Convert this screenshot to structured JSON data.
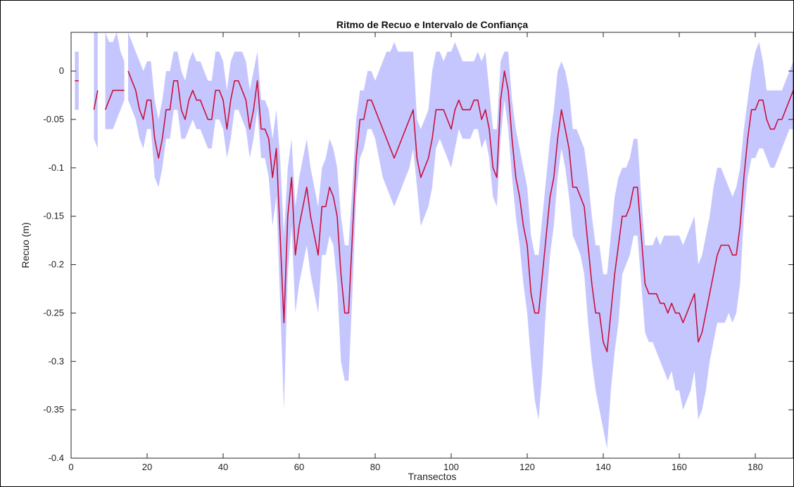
{
  "chart_data": {
    "type": "line",
    "title": "Ritmo de Recuo e Intervalo de Confiança",
    "xlabel": "Transectos",
    "ylabel": "Recuo (m)",
    "xlim": [
      0,
      190
    ],
    "ylim": [
      -0.4,
      0.04
    ],
    "xticks": [
      0,
      20,
      40,
      60,
      80,
      100,
      120,
      140,
      160,
      180
    ],
    "yticks": [
      -0.4,
      -0.35,
      -0.3,
      -0.25,
      -0.2,
      -0.15,
      -0.1,
      -0.05,
      0
    ],
    "xtick_labels": [
      "0",
      "20",
      "40",
      "60",
      "80",
      "100",
      "120",
      "140",
      "160",
      "180"
    ],
    "ytick_labels": [
      "-0.4",
      "-0.35",
      "-0.3",
      "-0.25",
      "-0.2",
      "-0.15",
      "-0.1",
      "-0.05",
      "0"
    ],
    "grid": false,
    "colors": {
      "line": "#c8103c",
      "band": "#c6c6ff"
    },
    "series": [
      {
        "segments": [
          {
            "x": [
              1,
              2
            ],
            "y": [
              -0.01,
              -0.01
            ],
            "upper": [
              0.02,
              0.02
            ],
            "lower": [
              -0.04,
              -0.04
            ]
          },
          {
            "x": [
              6,
              7
            ],
            "y": [
              -0.04,
              -0.02
            ],
            "upper": [
              0.06,
              0.06
            ],
            "lower": [
              -0.07,
              -0.08
            ]
          },
          {
            "x": [
              9,
              10,
              11,
              12,
              13,
              14
            ],
            "y": [
              -0.04,
              -0.03,
              -0.02,
              -0.02,
              -0.02,
              -0.02
            ],
            "upper": [
              0.04,
              0.03,
              0.03,
              0.04,
              0.02,
              0.01
            ],
            "lower": [
              -0.06,
              -0.06,
              -0.06,
              -0.05,
              -0.04,
              -0.03
            ]
          },
          {
            "x": [
              15,
              16,
              17,
              18,
              19,
              20,
              21,
              22,
              23,
              24,
              25,
              26,
              27,
              28,
              29,
              30,
              31,
              32,
              33,
              34,
              35,
              36,
              37,
              38,
              39,
              40,
              41,
              42,
              43,
              44,
              45,
              46,
              47,
              48,
              49,
              50,
              51,
              52,
              53,
              54,
              55,
              56,
              57,
              58,
              59,
              60,
              61,
              62,
              63,
              64,
              65,
              66,
              67,
              68,
              69,
              70,
              71,
              72,
              73,
              74,
              75,
              76,
              77,
              78,
              79,
              80,
              81,
              82,
              83,
              84,
              85,
              86,
              87,
              88,
              89,
              90,
              91,
              92,
              93,
              94,
              95,
              96,
              97,
              98,
              99,
              100,
              101,
              102,
              103,
              104,
              105,
              106,
              107,
              108,
              109,
              110,
              111,
              112,
              113,
              114,
              115,
              116,
              117,
              118,
              119,
              120,
              121,
              122,
              123,
              124,
              125,
              126,
              127,
              128,
              129,
              130,
              131,
              132,
              133,
              134,
              135,
              136,
              137,
              138,
              139,
              140,
              141,
              142,
              143,
              144,
              145,
              146,
              147,
              148,
              149,
              150,
              151,
              152,
              153,
              154,
              155,
              156,
              157,
              158,
              159,
              160,
              161,
              162,
              163,
              164,
              165,
              166,
              167,
              168,
              169,
              170,
              171,
              172,
              173,
              174,
              175,
              176,
              177,
              178,
              179,
              180,
              181,
              182,
              183,
              184,
              185,
              186,
              187,
              188,
              189,
              190
            ],
            "y": [
              0,
              -0.01,
              -0.02,
              -0.04,
              -0.05,
              -0.03,
              -0.03,
              -0.07,
              -0.09,
              -0.07,
              -0.04,
              -0.04,
              -0.01,
              -0.01,
              -0.04,
              -0.05,
              -0.03,
              -0.02,
              -0.03,
              -0.03,
              -0.04,
              -0.05,
              -0.05,
              -0.02,
              -0.02,
              -0.03,
              -0.06,
              -0.03,
              -0.01,
              -0.01,
              -0.02,
              -0.03,
              -0.06,
              -0.04,
              -0.01,
              -0.06,
              -0.06,
              -0.07,
              -0.11,
              -0.08,
              -0.17,
              -0.26,
              -0.15,
              -0.11,
              -0.19,
              -0.16,
              -0.14,
              -0.12,
              -0.15,
              -0.17,
              -0.19,
              -0.14,
              -0.14,
              -0.12,
              -0.13,
              -0.15,
              -0.21,
              -0.25,
              -0.25,
              -0.17,
              -0.09,
              -0.05,
              -0.05,
              -0.03,
              -0.03,
              -0.04,
              -0.05,
              -0.06,
              -0.07,
              -0.08,
              -0.09,
              -0.08,
              -0.07,
              -0.06,
              -0.05,
              -0.04,
              -0.09,
              -0.11,
              -0.1,
              -0.09,
              -0.07,
              -0.04,
              -0.04,
              -0.04,
              -0.05,
              -0.06,
              -0.04,
              -0.03,
              -0.04,
              -0.04,
              -0.04,
              -0.03,
              -0.03,
              -0.05,
              -0.04,
              -0.06,
              -0.1,
              -0.11,
              -0.03,
              0,
              -0.02,
              -0.07,
              -0.11,
              -0.13,
              -0.16,
              -0.18,
              -0.23,
              -0.25,
              -0.25,
              -0.21,
              -0.17,
              -0.13,
              -0.11,
              -0.07,
              -0.04,
              -0.06,
              -0.08,
              -0.12,
              -0.12,
              -0.13,
              -0.14,
              -0.18,
              -0.22,
              -0.25,
              -0.25,
              -0.28,
              -0.29,
              -0.25,
              -0.21,
              -0.18,
              -0.15,
              -0.15,
              -0.14,
              -0.12,
              -0.12,
              -0.17,
              -0.22,
              -0.23,
              -0.23,
              -0.23,
              -0.24,
              -0.24,
              -0.25,
              -0.24,
              -0.25,
              -0.25,
              -0.26,
              -0.25,
              -0.24,
              -0.23,
              -0.28,
              -0.27,
              -0.25,
              -0.23,
              -0.21,
              -0.19,
              -0.18,
              -0.18,
              -0.18,
              -0.19,
              -0.19,
              -0.16,
              -0.11,
              -0.07,
              -0.04,
              -0.04,
              -0.03,
              -0.03,
              -0.05,
              -0.06,
              -0.06,
              -0.05,
              -0.05,
              -0.04,
              -0.03,
              -0.02
            ],
            "upper": [
              0.04,
              0.03,
              0.02,
              0.01,
              0,
              0.01,
              0.01,
              -0.03,
              -0.05,
              -0.03,
              0,
              0,
              0.02,
              0.02,
              0,
              -0.01,
              0.01,
              0.02,
              0.01,
              0.01,
              0,
              -0.01,
              -0.01,
              0.02,
              0.02,
              0.01,
              -0.02,
              0.01,
              0.02,
              0.02,
              0.02,
              0.01,
              -0.02,
              0,
              0.02,
              -0.03,
              -0.03,
              -0.04,
              -0.07,
              -0.04,
              -0.09,
              -0.17,
              -0.1,
              -0.07,
              -0.14,
              -0.11,
              -0.09,
              -0.07,
              -0.1,
              -0.12,
              -0.14,
              -0.1,
              -0.09,
              -0.07,
              -0.08,
              -0.1,
              -0.15,
              -0.18,
              -0.18,
              -0.12,
              -0.05,
              -0.02,
              -0.02,
              0,
              0,
              -0.01,
              0,
              0.01,
              0.02,
              0.02,
              0.03,
              0.02,
              0.02,
              0.02,
              0.02,
              0.02,
              -0.05,
              -0.06,
              -0.05,
              -0.04,
              0,
              0.02,
              0.02,
              0.01,
              0.02,
              0.02,
              0.03,
              0.02,
              0.01,
              0.01,
              0.01,
              0.01,
              0.02,
              0.01,
              0.02,
              -0.02,
              -0.06,
              -0.06,
              0.01,
              0.02,
              0.02,
              -0.03,
              -0.06,
              -0.08,
              -0.1,
              -0.12,
              -0.17,
              -0.19,
              -0.19,
              -0.15,
              -0.11,
              -0.07,
              -0.04,
              0,
              0.01,
              0,
              -0.02,
              -0.06,
              -0.06,
              -0.07,
              -0.08,
              -0.11,
              -0.15,
              -0.18,
              -0.18,
              -0.21,
              -0.21,
              -0.17,
              -0.13,
              -0.11,
              -0.1,
              -0.1,
              -0.09,
              -0.07,
              -0.07,
              -0.13,
              -0.18,
              -0.18,
              -0.18,
              -0.17,
              -0.18,
              -0.17,
              -0.17,
              -0.17,
              -0.17,
              -0.17,
              -0.18,
              -0.17,
              -0.16,
              -0.15,
              -0.2,
              -0.19,
              -0.17,
              -0.15,
              -0.12,
              -0.1,
              -0.1,
              -0.11,
              -0.12,
              -0.13,
              -0.12,
              -0.1,
              -0.06,
              -0.03,
              0,
              0.02,
              0.03,
              0.01,
              -0.02,
              -0.02,
              -0.02,
              -0.02,
              -0.02,
              -0.01,
              0,
              0.01
            ],
            "lower": [
              -0.03,
              -0.04,
              -0.05,
              -0.07,
              -0.08,
              -0.06,
              -0.06,
              -0.11,
              -0.12,
              -0.1,
              -0.07,
              -0.07,
              -0.04,
              -0.04,
              -0.07,
              -0.07,
              -0.06,
              -0.05,
              -0.06,
              -0.06,
              -0.07,
              -0.08,
              -0.08,
              -0.05,
              -0.05,
              -0.06,
              -0.09,
              -0.07,
              -0.04,
              -0.04,
              -0.05,
              -0.06,
              -0.09,
              -0.07,
              -0.04,
              -0.09,
              -0.09,
              -0.11,
              -0.16,
              -0.13,
              -0.24,
              -0.35,
              -0.21,
              -0.16,
              -0.25,
              -0.22,
              -0.2,
              -0.18,
              -0.21,
              -0.23,
              -0.25,
              -0.19,
              -0.19,
              -0.17,
              -0.18,
              -0.22,
              -0.3,
              -0.32,
              -0.32,
              -0.23,
              -0.13,
              -0.09,
              -0.08,
              -0.06,
              -0.06,
              -0.07,
              -0.09,
              -0.11,
              -0.12,
              -0.13,
              -0.14,
              -0.13,
              -0.12,
              -0.11,
              -0.1,
              -0.08,
              -0.12,
              -0.16,
              -0.15,
              -0.14,
              -0.12,
              -0.08,
              -0.07,
              -0.08,
              -0.09,
              -0.1,
              -0.08,
              -0.06,
              -0.07,
              -0.07,
              -0.07,
              -0.06,
              -0.06,
              -0.08,
              -0.07,
              -0.09,
              -0.13,
              -0.14,
              -0.07,
              -0.03,
              -0.06,
              -0.11,
              -0.15,
              -0.18,
              -0.22,
              -0.25,
              -0.3,
              -0.34,
              -0.36,
              -0.31,
              -0.24,
              -0.19,
              -0.16,
              -0.11,
              -0.08,
              -0.1,
              -0.13,
              -0.17,
              -0.18,
              -0.19,
              -0.21,
              -0.26,
              -0.3,
              -0.33,
              -0.35,
              -0.37,
              -0.39,
              -0.33,
              -0.29,
              -0.26,
              -0.21,
              -0.2,
              -0.19,
              -0.17,
              -0.17,
              -0.22,
              -0.27,
              -0.28,
              -0.28,
              -0.29,
              -0.3,
              -0.31,
              -0.32,
              -0.31,
              -0.33,
              -0.33,
              -0.35,
              -0.34,
              -0.33,
              -0.31,
              -0.36,
              -0.35,
              -0.33,
              -0.3,
              -0.28,
              -0.26,
              -0.26,
              -0.26,
              -0.25,
              -0.26,
              -0.25,
              -0.22,
              -0.15,
              -0.11,
              -0.09,
              -0.09,
              -0.08,
              -0.08,
              -0.09,
              -0.1,
              -0.1,
              -0.09,
              -0.08,
              -0.07,
              -0.06,
              -0.06
            ]
          }
        ]
      }
    ]
  }
}
